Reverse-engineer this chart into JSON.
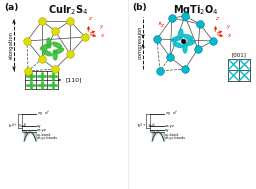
{
  "title_a": "CuIr$_2$S$_4$",
  "title_b": "MgTi$_2$O$_4$",
  "label_a": "(a)",
  "label_b": "(b)",
  "label_elongation": "elongation",
  "label_compression": "compression",
  "label_110": "[110]",
  "label_001": "[001]",
  "label_ir": "Ir$^{4+}$ 5d$^5$",
  "label_ti": "Ti$^{3+}$ 3d$^1$",
  "yellow": "#dddd00",
  "green": "#33bb33",
  "cyan": "#00bbcc",
  "bg": "#ffffff",
  "axis_red": "#ff2200",
  "cage_color": "#555555",
  "dark": "#111111"
}
